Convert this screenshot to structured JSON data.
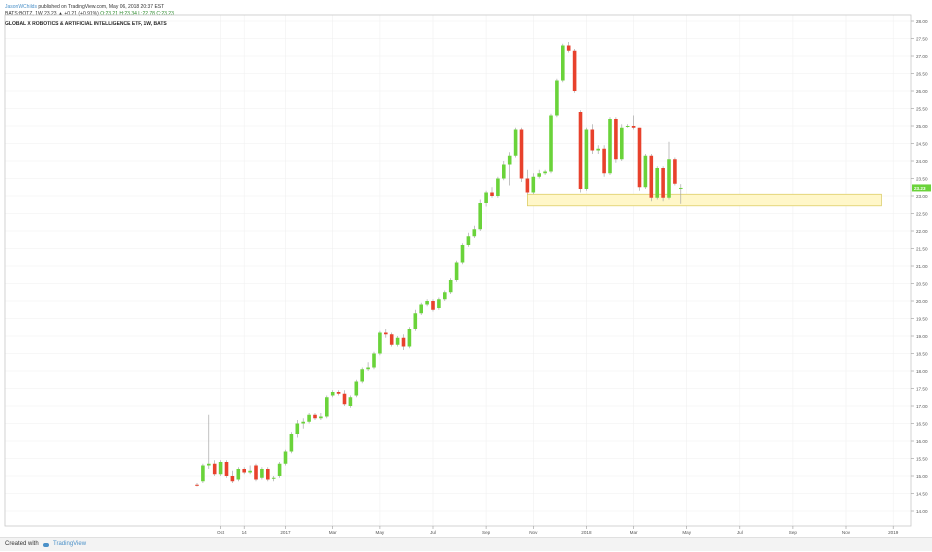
{
  "header": {
    "publisher": "JasonWChilds",
    "published_text": "published on TradingView.com, May 06, 2018 20:37 EST",
    "symbol_line": "BATS:BOTZ, 1W  23.23 ▲ +0.21 (+0.91%)",
    "ohlc_line": "O:23.21 H:23.34 L:22.78 C:23.23",
    "title": "GLOBAL X ROBOTICS & ARTIFICIAL INTELLIGENCE ETF, 1W, BATS"
  },
  "footer": {
    "created_with": "Created with",
    "brand": "TradingView"
  },
  "colors": {
    "up": "#6ad33a",
    "down": "#e8412c",
    "wick": "#9a9a9a",
    "zone_fill": "#fff7c9",
    "zone_stroke": "#d8c85a",
    "last_price_tag": "#6ad33a",
    "grid": "#f0f0f0"
  },
  "chart_data": {
    "type": "candlestick",
    "title": "GLOBAL X ROBOTICS & ARTIFICIAL INTELLIGENCE ETF, 1W, BATS",
    "interval": "1W",
    "ylim": [
      13.75,
      28.25
    ],
    "y_ticks": [
      "14.00",
      "14.50",
      "15.00",
      "15.50",
      "16.00",
      "16.50",
      "17.00",
      "17.50",
      "18.00",
      "18.50",
      "19.00",
      "19.50",
      "20.00",
      "20.50",
      "21.00",
      "21.50",
      "22.00",
      "22.50",
      "23.00",
      "23.50",
      "24.00",
      "24.50",
      "25.00",
      "25.50",
      "26.00",
      "26.50",
      "27.00",
      "27.50",
      "28.00"
    ],
    "last_price": "23.23",
    "x_ticks": [
      {
        "label": "Oct",
        "week": 4
      },
      {
        "label": "14",
        "week": 8
      },
      {
        "label": "2017",
        "week": 15
      },
      {
        "label": "Mar",
        "week": 23
      },
      {
        "label": "May",
        "week": 31
      },
      {
        "label": "Jul",
        "week": 40
      },
      {
        "label": "Sep",
        "week": 49
      },
      {
        "label": "Nov",
        "week": 57
      },
      {
        "label": "2018",
        "week": 66
      },
      {
        "label": "Mar",
        "week": 74
      },
      {
        "label": "May",
        "week": 83
      },
      {
        "label": "Jul",
        "week": 92
      },
      {
        "label": "Sep",
        "week": 101
      },
      {
        "label": "Nov",
        "week": 110
      },
      {
        "label": "2019",
        "week": 118
      },
      {
        "label": "Mar",
        "week": 127
      }
    ],
    "support_zone": {
      "low": 22.72,
      "high": 23.05,
      "from_week": 56,
      "to_week": 116
    },
    "candles": [
      {
        "o": 14.75,
        "h": 14.8,
        "l": 14.7,
        "c": 14.72
      },
      {
        "o": 14.85,
        "h": 15.35,
        "l": 14.8,
        "c": 15.3
      },
      {
        "o": 15.3,
        "h": 16.75,
        "l": 15.2,
        "c": 15.35
      },
      {
        "o": 15.35,
        "h": 15.45,
        "l": 15.0,
        "c": 15.05
      },
      {
        "o": 15.05,
        "h": 15.45,
        "l": 15.0,
        "c": 15.4
      },
      {
        "o": 15.4,
        "h": 15.45,
        "l": 14.95,
        "c": 15.0
      },
      {
        "o": 15.0,
        "h": 15.15,
        "l": 14.8,
        "c": 14.85
      },
      {
        "o": 14.9,
        "h": 15.25,
        "l": 14.85,
        "c": 15.2
      },
      {
        "o": 15.2,
        "h": 15.25,
        "l": 15.05,
        "c": 15.1
      },
      {
        "o": 15.1,
        "h": 15.3,
        "l": 15.05,
        "c": 15.15
      },
      {
        "o": 15.3,
        "h": 15.35,
        "l": 14.85,
        "c": 14.9
      },
      {
        "o": 14.95,
        "h": 15.25,
        "l": 14.9,
        "c": 15.2
      },
      {
        "o": 15.2,
        "h": 15.25,
        "l": 14.85,
        "c": 14.9
      },
      {
        "o": 14.95,
        "h": 15.0,
        "l": 14.85,
        "c": 14.95
      },
      {
        "o": 15.0,
        "h": 15.4,
        "l": 14.95,
        "c": 15.35
      },
      {
        "o": 15.35,
        "h": 15.75,
        "l": 15.3,
        "c": 15.7
      },
      {
        "o": 15.7,
        "h": 16.25,
        "l": 15.65,
        "c": 16.2
      },
      {
        "o": 16.2,
        "h": 16.6,
        "l": 16.1,
        "c": 16.5
      },
      {
        "o": 16.5,
        "h": 16.65,
        "l": 16.35,
        "c": 16.55
      },
      {
        "o": 16.55,
        "h": 16.8,
        "l": 16.5,
        "c": 16.75
      },
      {
        "o": 16.75,
        "h": 16.8,
        "l": 16.6,
        "c": 16.65
      },
      {
        "o": 16.65,
        "h": 16.8,
        "l": 16.6,
        "c": 16.7
      },
      {
        "o": 16.7,
        "h": 17.3,
        "l": 16.65,
        "c": 17.25
      },
      {
        "o": 17.3,
        "h": 17.45,
        "l": 17.25,
        "c": 17.4
      },
      {
        "o": 17.4,
        "h": 17.45,
        "l": 17.3,
        "c": 17.35
      },
      {
        "o": 17.35,
        "h": 17.45,
        "l": 17.0,
        "c": 17.05
      },
      {
        "o": 17.0,
        "h": 17.3,
        "l": 16.95,
        "c": 17.25
      },
      {
        "o": 17.3,
        "h": 17.75,
        "l": 17.25,
        "c": 17.7
      },
      {
        "o": 17.7,
        "h": 18.1,
        "l": 17.65,
        "c": 18.05
      },
      {
        "o": 18.05,
        "h": 18.25,
        "l": 18.0,
        "c": 18.1
      },
      {
        "o": 18.1,
        "h": 18.55,
        "l": 18.05,
        "c": 18.5
      },
      {
        "o": 18.5,
        "h": 19.15,
        "l": 18.45,
        "c": 19.1
      },
      {
        "o": 19.1,
        "h": 19.2,
        "l": 18.95,
        "c": 19.05
      },
      {
        "o": 19.05,
        "h": 19.1,
        "l": 18.7,
        "c": 18.75
      },
      {
        "o": 18.75,
        "h": 19.0,
        "l": 18.7,
        "c": 18.95
      },
      {
        "o": 18.95,
        "h": 19.05,
        "l": 18.6,
        "c": 18.7
      },
      {
        "o": 18.7,
        "h": 19.25,
        "l": 18.65,
        "c": 19.2
      },
      {
        "o": 19.2,
        "h": 19.75,
        "l": 19.15,
        "c": 19.65
      },
      {
        "o": 19.65,
        "h": 19.95,
        "l": 19.6,
        "c": 19.9
      },
      {
        "o": 19.9,
        "h": 20.05,
        "l": 19.85,
        "c": 20.0
      },
      {
        "o": 20.0,
        "h": 20.05,
        "l": 19.7,
        "c": 19.75
      },
      {
        "o": 19.8,
        "h": 20.1,
        "l": 19.75,
        "c": 20.05
      },
      {
        "o": 20.05,
        "h": 20.3,
        "l": 20.0,
        "c": 20.25
      },
      {
        "o": 20.25,
        "h": 20.65,
        "l": 20.2,
        "c": 20.6
      },
      {
        "o": 20.6,
        "h": 21.15,
        "l": 20.55,
        "c": 21.1
      },
      {
        "o": 21.1,
        "h": 21.65,
        "l": 21.05,
        "c": 21.6
      },
      {
        "o": 21.6,
        "h": 21.95,
        "l": 21.55,
        "c": 21.85
      },
      {
        "o": 21.85,
        "h": 22.15,
        "l": 21.8,
        "c": 22.05
      },
      {
        "o": 22.05,
        "h": 22.9,
        "l": 22.0,
        "c": 22.8
      },
      {
        "o": 22.8,
        "h": 23.15,
        "l": 22.7,
        "c": 23.1
      },
      {
        "o": 23.1,
        "h": 23.25,
        "l": 22.95,
        "c": 23.0
      },
      {
        "o": 23.0,
        "h": 23.55,
        "l": 22.95,
        "c": 23.5
      },
      {
        "o": 23.5,
        "h": 24.0,
        "l": 23.45,
        "c": 23.9
      },
      {
        "o": 23.9,
        "h": 24.25,
        "l": 23.3,
        "c": 24.15
      },
      {
        "o": 24.15,
        "h": 24.95,
        "l": 24.1,
        "c": 24.9
      },
      {
        "o": 24.9,
        "h": 24.95,
        "l": 23.4,
        "c": 23.5
      },
      {
        "o": 23.5,
        "h": 23.75,
        "l": 23.05,
        "c": 23.1
      },
      {
        "o": 23.1,
        "h": 23.65,
        "l": 23.05,
        "c": 23.55
      },
      {
        "o": 23.55,
        "h": 23.75,
        "l": 23.5,
        "c": 23.65
      },
      {
        "o": 23.65,
        "h": 23.75,
        "l": 23.6,
        "c": 23.7
      },
      {
        "o": 23.7,
        "h": 25.35,
        "l": 23.65,
        "c": 25.3
      },
      {
        "o": 25.3,
        "h": 26.35,
        "l": 25.25,
        "c": 26.3
      },
      {
        "o": 26.3,
        "h": 27.35,
        "l": 26.25,
        "c": 27.3
      },
      {
        "o": 27.3,
        "h": 27.4,
        "l": 27.1,
        "c": 27.15
      },
      {
        "o": 27.15,
        "h": 27.2,
        "l": 25.95,
        "c": 26.0
      },
      {
        "o": 25.4,
        "h": 25.45,
        "l": 23.1,
        "c": 23.2
      },
      {
        "o": 23.2,
        "h": 24.95,
        "l": 23.15,
        "c": 24.9
      },
      {
        "o": 24.9,
        "h": 25.05,
        "l": 24.2,
        "c": 24.3
      },
      {
        "o": 24.3,
        "h": 24.45,
        "l": 24.2,
        "c": 24.35
      },
      {
        "o": 24.35,
        "h": 24.45,
        "l": 23.55,
        "c": 23.65
      },
      {
        "o": 23.65,
        "h": 25.25,
        "l": 23.6,
        "c": 25.2
      },
      {
        "o": 25.2,
        "h": 25.25,
        "l": 23.95,
        "c": 24.05
      },
      {
        "o": 24.05,
        "h": 25.05,
        "l": 24.0,
        "c": 24.95
      },
      {
        "o": 25.0,
        "h": 25.05,
        "l": 24.95,
        "c": 25.0
      },
      {
        "o": 25.0,
        "h": 25.3,
        "l": 24.9,
        "c": 24.95
      },
      {
        "o": 24.95,
        "h": 24.95,
        "l": 23.15,
        "c": 23.25
      },
      {
        "o": 23.25,
        "h": 24.2,
        "l": 23.2,
        "c": 24.15
      },
      {
        "o": 24.15,
        "h": 24.2,
        "l": 22.85,
        "c": 22.95
      },
      {
        "o": 22.95,
        "h": 23.85,
        "l": 22.9,
        "c": 23.8
      },
      {
        "o": 23.8,
        "h": 23.85,
        "l": 22.85,
        "c": 22.95
      },
      {
        "o": 22.95,
        "h": 24.55,
        "l": 22.9,
        "c": 24.05
      },
      {
        "o": 24.05,
        "h": 24.1,
        "l": 23.3,
        "c": 23.35
      },
      {
        "o": 23.21,
        "h": 23.34,
        "l": 22.78,
        "c": 23.23
      }
    ]
  }
}
